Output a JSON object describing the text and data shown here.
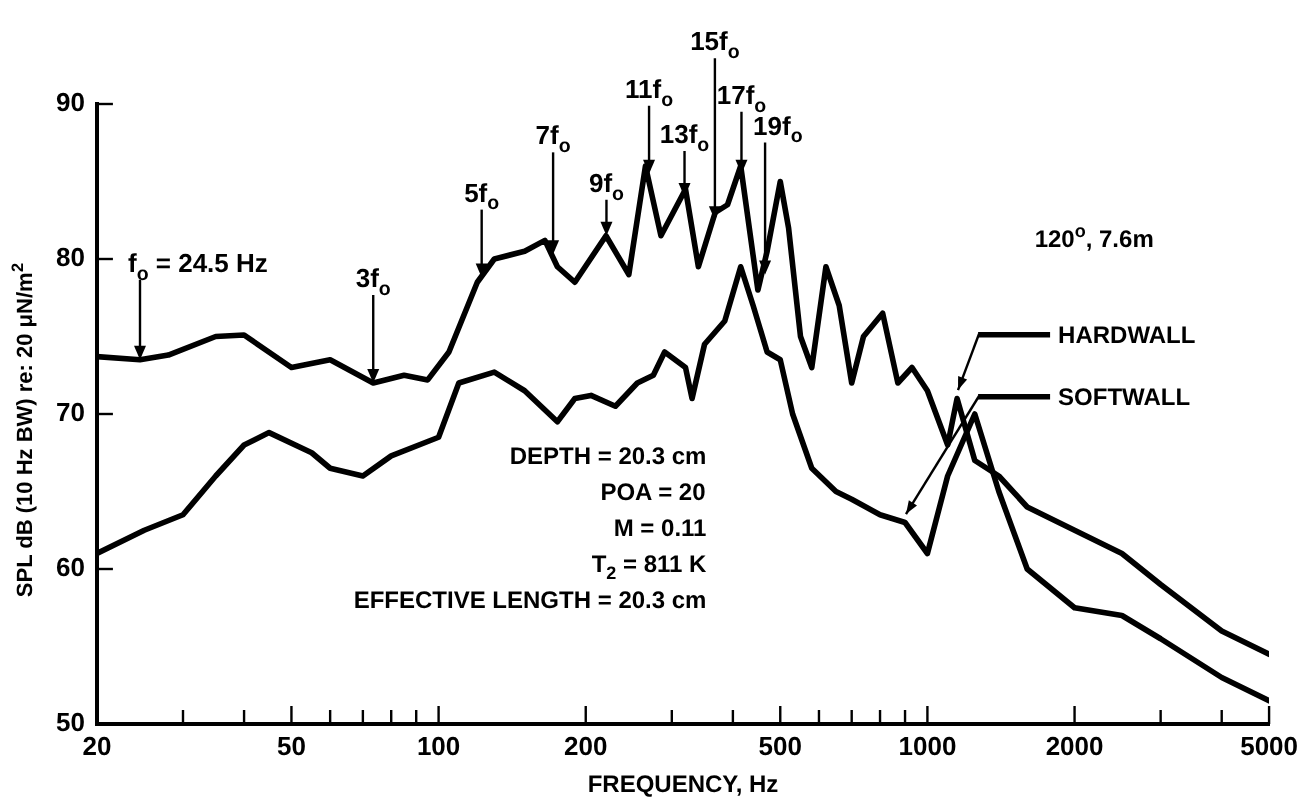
{
  "chart_data": {
    "type": "line",
    "xlabel": "FREQUENCY, Hz",
    "ylabel": "SPL dB (10 Hz BW) re: 20 μN/m$^{2}$",
    "log": "x",
    "grid": false,
    "legend": "right",
    "marker": "none",
    "line_style": "solid",
    "xlim": [
      20,
      5000
    ],
    "ylim": [
      50,
      90
    ],
    "xticks": [
      20,
      {
        "value": 30,
        "label": null
      },
      {
        "value": 40,
        "label": null
      },
      50,
      {
        "value": 60,
        "label": null
      },
      {
        "value": 70,
        "label": null
      },
      {
        "value": 80,
        "label": null
      },
      {
        "value": 90,
        "label": null
      },
      100,
      200,
      {
        "value": 300,
        "label": null
      },
      {
        "value": 400,
        "label": null
      },
      500,
      {
        "value": 600,
        "label": null
      },
      {
        "value": 700,
        "label": null
      },
      {
        "value": 800,
        "label": null
      },
      {
        "value": 900,
        "label": null
      },
      1000,
      2000,
      {
        "value": 3000,
        "label": null
      },
      {
        "value": 4000,
        "label": null
      },
      5000
    ],
    "yticks": [
      50,
      60,
      70,
      80,
      90
    ],
    "series": [
      {
        "name": "HARDWALL",
        "color": "#000000",
        "x": [
          20,
          24.5,
          28,
          35,
          40,
          50,
          60,
          73.5,
          85,
          95,
          105,
          120,
          130,
          150,
          165,
          175,
          190,
          220,
          245,
          265,
          285,
          320,
          340,
          368,
          390,
          415,
          450,
          470,
          500,
          520,
          550,
          580,
          620,
          660,
          700,
          740,
          810,
          870,
          930,
          1000,
          1100,
          1150,
          1250,
          1400,
          1600,
          2000,
          2500,
          3000,
          4000,
          5000
        ],
        "values": [
          73.7,
          73.5,
          73.8,
          75,
          75.1,
          73,
          73.5,
          72,
          72.5,
          72.2,
          74,
          78.5,
          80,
          80.5,
          81.2,
          79.5,
          78.5,
          81.5,
          79,
          86,
          81.5,
          84.5,
          79.5,
          83,
          83.5,
          86,
          78,
          80.5,
          85,
          82,
          75,
          73,
          79.5,
          77,
          72,
          75,
          76.5,
          72,
          73,
          71.5,
          68,
          71,
          67,
          66,
          64,
          62.5,
          61,
          59,
          56,
          54.5
        ]
      },
      {
        "name": "SOFTWALL",
        "color": "#000000",
        "x": [
          20,
          25,
          30,
          35,
          40,
          45,
          55,
          60,
          70,
          80,
          100,
          110,
          130,
          150,
          175,
          190,
          205,
          230,
          255,
          275,
          290,
          320,
          330,
          350,
          385,
          415,
          440,
          470,
          500,
          530,
          580,
          650,
          700,
          800,
          900,
          1000,
          1100,
          1250,
          1400,
          1600,
          2000,
          2500,
          3000,
          4000,
          5000
        ],
        "values": [
          61,
          62.5,
          63.5,
          66,
          68,
          68.8,
          67.5,
          66.5,
          66,
          67.3,
          68.5,
          72,
          72.7,
          71.5,
          69.5,
          71,
          71.2,
          70.5,
          72,
          72.5,
          74,
          73,
          71,
          74.5,
          76,
          79.5,
          77,
          74,
          73.5,
          70,
          66.5,
          65,
          64.5,
          63.5,
          63,
          61,
          66,
          70,
          65,
          60,
          57.5,
          57,
          55.5,
          53,
          51.5
        ]
      }
    ],
    "annotations": [
      {
        "text": "f$_{o}$ = 24.5 Hz",
        "x": 24.5,
        "y": 73.5
      },
      {
        "text": "3f$_{o}$",
        "x": 73.5,
        "y": 72
      },
      {
        "text": "5f$_{o}$",
        "x": 122.5,
        "y": 78.8
      },
      {
        "text": "7f$_{o}$",
        "x": 171.5,
        "y": 80.3
      },
      {
        "text": "9f$_{o}$",
        "x": 220.5,
        "y": 81.5
      },
      {
        "text": "11f$_{o}$",
        "x": 269.5,
        "y": 85.5
      },
      {
        "text": "13f$_{o}$",
        "x": 318.5,
        "y": 84
      },
      {
        "text": "15f$_{o}$",
        "x": 367.5,
        "y": 82.5
      },
      {
        "text": "17f$_{o}$",
        "x": 416.5,
        "y": 85.5
      },
      {
        "text": "19f$_{o}$",
        "x": 465.5,
        "y": 79
      },
      "120$^{o}$, 7.6m",
      "DEPTH = 20.3 cm",
      "POA = 20",
      "M = 0.11",
      "T$_{2}$ = 811 K",
      "EFFECTIVE LENGTH = 20.3 cm"
    ]
  }
}
